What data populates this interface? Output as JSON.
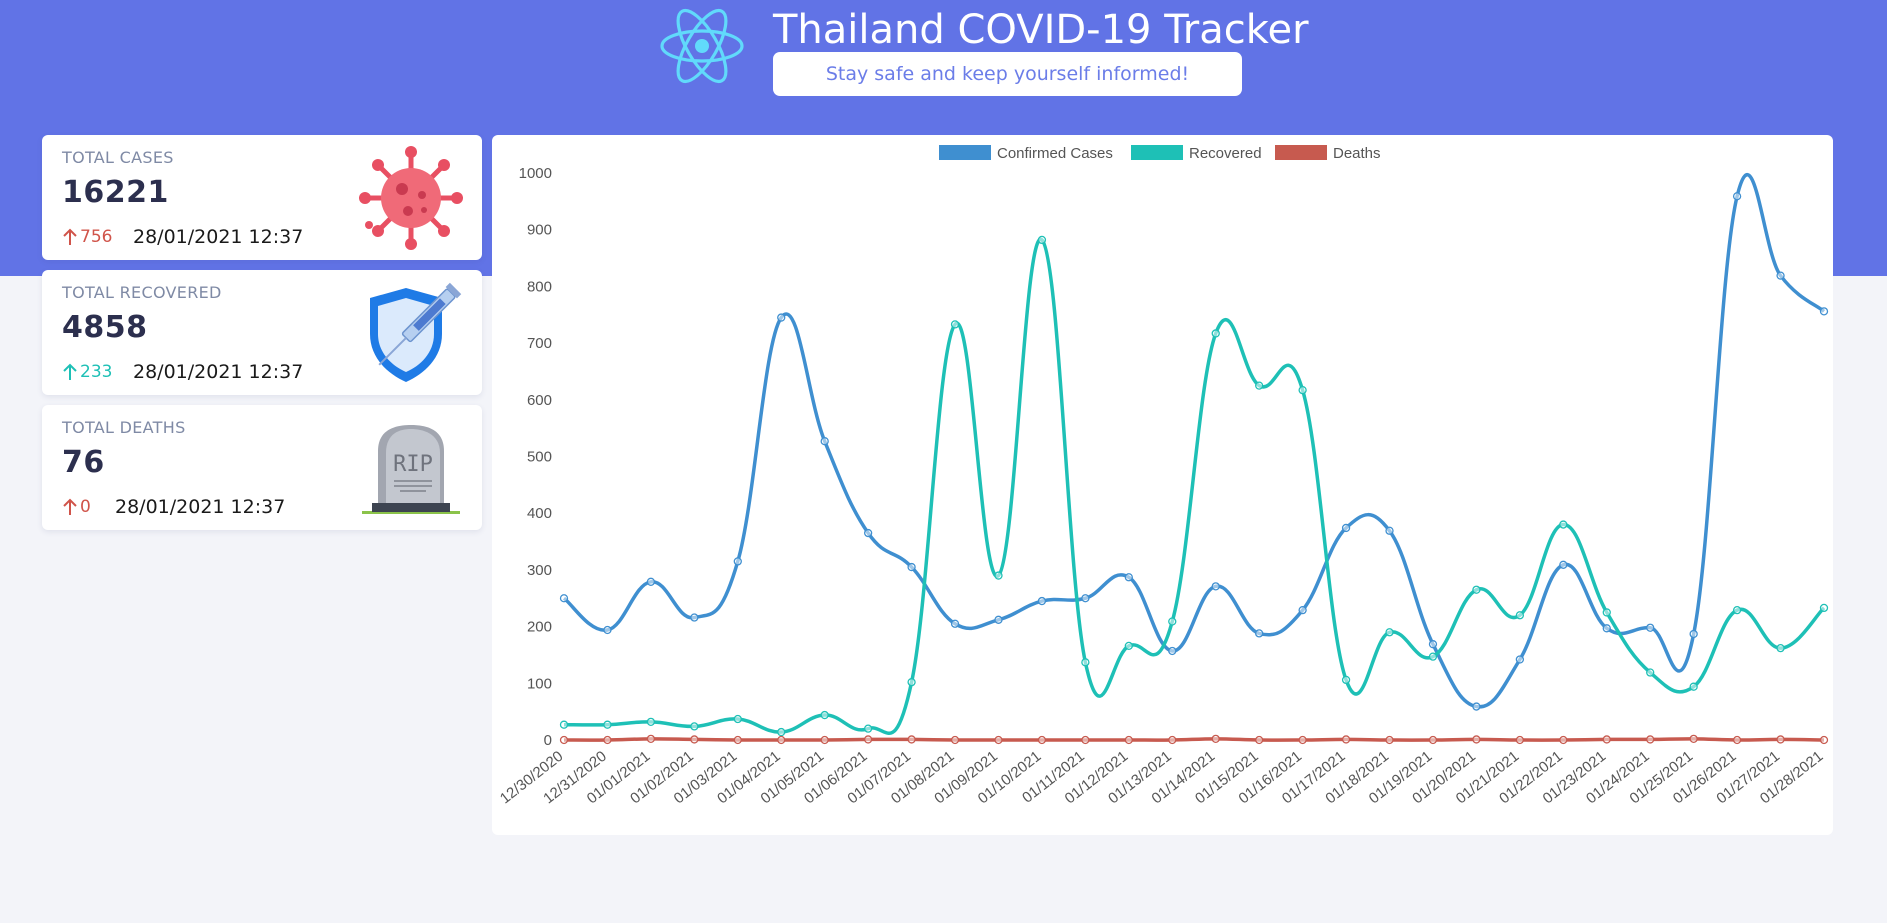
{
  "header": {
    "title": "Thailand COVID-19 Tracker",
    "subtitle": "Stay safe and keep yourself informed!"
  },
  "colors": {
    "banner": "#6173e6",
    "confirmed": "#3f8fd0",
    "recovered": "#1ec0b6",
    "deaths": "#c75a4f",
    "up_red": "#d0544a",
    "up_teal": "#1ec0b6"
  },
  "cards": [
    {
      "label": "Total Cases",
      "value": "16221",
      "delta": "756",
      "updated": "28/01/2021 12:37",
      "icon": "virus-icon"
    },
    {
      "label": "Total Recovered",
      "value": "4858",
      "delta": "233",
      "updated": "28/01/2021 12:37",
      "icon": "shield-vaccine-icon"
    },
    {
      "label": "Total Deaths",
      "value": "76",
      "delta": "0",
      "updated": "28/01/2021 12:37",
      "icon": "tombstone-icon",
      "tomb_text": "RIP"
    }
  ],
  "chart_data": {
    "type": "line",
    "legend_position": "top-center",
    "grid": false,
    "ylim": [
      0,
      1000
    ],
    "yticks": [
      0,
      100,
      200,
      300,
      400,
      500,
      600,
      700,
      800,
      900,
      1000
    ],
    "categories": [
      "12/30/2020",
      "12/31/2020",
      "01/01/2021",
      "01/02/2021",
      "01/03/2021",
      "01/04/2021",
      "01/05/2021",
      "01/06/2021",
      "01/07/2021",
      "01/08/2021",
      "01/09/2021",
      "01/10/2021",
      "01/11/2021",
      "01/12/2021",
      "01/13/2021",
      "01/14/2021",
      "01/15/2021",
      "01/16/2021",
      "01/17/2021",
      "01/18/2021",
      "01/19/2021",
      "01/20/2021",
      "01/21/2021",
      "01/22/2021",
      "01/23/2021",
      "01/24/2021",
      "01/25/2021",
      "01/26/2021",
      "01/27/2021",
      "01/28/2021"
    ],
    "series": [
      {
        "name": "Confirmed Cases",
        "color": "#3f8fd0",
        "values": [
          250,
          194,
          279,
          216,
          315,
          745,
          527,
          365,
          305,
          205,
          212,
          245,
          250,
          287,
          157,
          271,
          188,
          229,
          374,
          369,
          169,
          59,
          142,
          309,
          197,
          198,
          187,
          959,
          819,
          756
        ]
      },
      {
        "name": "Recovered",
        "color": "#1ec0b6",
        "values": [
          27,
          27,
          32,
          24,
          37,
          14,
          44,
          20,
          102,
          733,
          290,
          882,
          137,
          166,
          209,
          717,
          625,
          617,
          106,
          190,
          147,
          265,
          220,
          380,
          225,
          119,
          94,
          229,
          162,
          233
        ]
      },
      {
        "name": "Deaths",
        "color": "#c75a4f",
        "values": [
          0,
          0,
          2,
          1,
          0,
          0,
          0,
          1,
          1,
          0,
          0,
          0,
          0,
          0,
          0,
          2,
          0,
          0,
          1,
          0,
          0,
          1,
          0,
          0,
          1,
          1,
          2,
          0,
          1,
          0
        ]
      }
    ]
  }
}
